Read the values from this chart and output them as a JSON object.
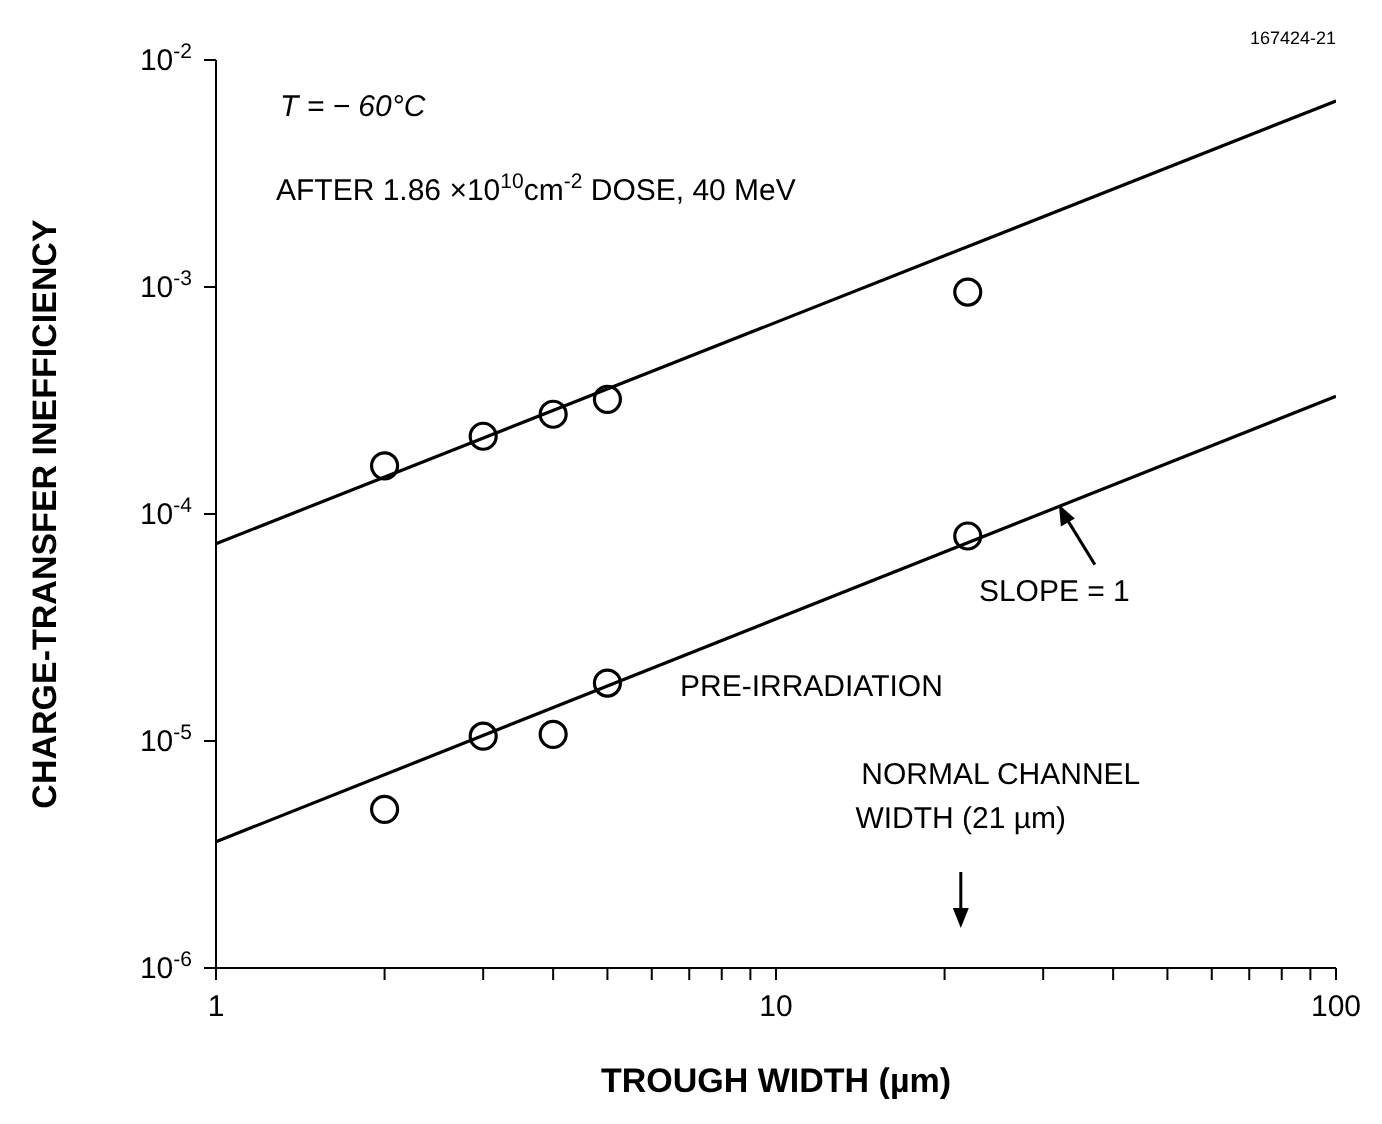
{
  "chart_data": {
    "type": "scatter",
    "xlabel": "TROUGH WIDTH (µm)",
    "ylabel": "CHARGE-TRANSFER INEFFICIENCY",
    "log": "xy",
    "xlim": [
      1,
      100
    ],
    "ylim": [
      1e-06,
      0.01
    ],
    "xticks": [
      1,
      {
        "value": 2,
        "label": null
      },
      {
        "value": 3,
        "label": null
      },
      {
        "value": 4,
        "label": null
      },
      {
        "value": 5,
        "label": null
      },
      {
        "value": 6,
        "label": null
      },
      {
        "value": 7,
        "label": null
      },
      {
        "value": 8,
        "label": null
      },
      {
        "value": 9,
        "label": null
      },
      10,
      {
        "value": 20,
        "label": null
      },
      {
        "value": 30,
        "label": null
      },
      {
        "value": 40,
        "label": null
      },
      {
        "value": 50,
        "label": null
      },
      {
        "value": 60,
        "label": null
      },
      {
        "value": 70,
        "label": null
      },
      {
        "value": 80,
        "label": null
      },
      {
        "value": 90,
        "label": null
      },
      100
    ],
    "yticks": [
      {
        "value": 1e-06,
        "label": "10$^{-6}$"
      },
      {
        "value": 1e-05,
        "label": "10$^{-5}$"
      },
      {
        "value": 0.0001,
        "label": "10$^{-4}$"
      },
      {
        "value": 0.001,
        "label": "10$^{-3}$"
      },
      {
        "value": 0.01,
        "label": "10$^{-2}$"
      }
    ],
    "series": [
      {
        "marker": "circle",
        "color": "#000000",
        "x": [
          2,
          3,
          4,
          5,
          22
        ],
        "values": [
          0.000163,
          0.00022,
          0.000275,
          0.00032,
          0.00095
        ]
      },
      {
        "marker": "circle",
        "color": "#000000",
        "x": [
          2,
          3,
          4,
          5,
          22
        ],
        "values": [
          5e-06,
          1.05e-05,
          1.07e-05,
          1.8e-05,
          8e-05
        ]
      },
      {
        "type": "line",
        "marker": "none",
        "color": "#000000",
        "x": [
          1,
          100
        ],
        "values": [
          7.4e-05,
          0.0066
        ]
      },
      {
        "type": "line",
        "marker": "none",
        "color": "#000000",
        "x": [
          1,
          100
        ],
        "values": [
          3.6e-06,
          0.00033
        ]
      }
    ],
    "annotations": [
      "167424-21",
      "T = − 60°C",
      "AFTER 1.86 ×10$^{10}$cm$^{-2}$ DOSE, 40 MeV",
      {
        "text": "SLOPE = 1",
        "x": 32,
        "y": 0.00011
      },
      "PRE-IRRADIATION",
      "NORMAL CHANNEL WIDTH (21 µm)"
    ]
  }
}
